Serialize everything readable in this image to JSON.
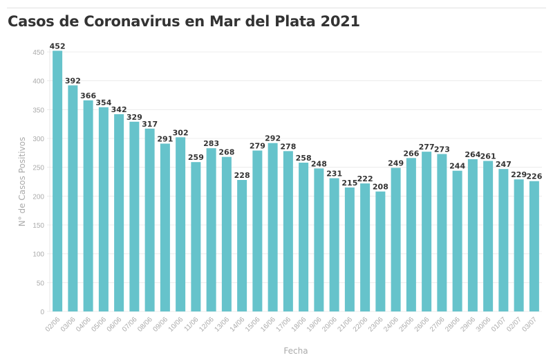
{
  "chart_data": {
    "type": "bar",
    "title": "Casos de Coronavirus en Mar del Plata 2021",
    "xlabel": "Fecha",
    "ylabel": "N° de Casos Positivos",
    "ylim": [
      0,
      450
    ],
    "yticks": [
      0,
      50,
      100,
      150,
      200,
      250,
      300,
      350,
      400,
      450
    ],
    "grid": true,
    "bar_color": "#66c3cb",
    "categories": [
      "02/06",
      "03/06",
      "04/06",
      "05/06",
      "06/06",
      "07/06",
      "08/06",
      "09/06",
      "10/06",
      "11/06",
      "12/06",
      "13/06",
      "14/06",
      "15/06",
      "16/06",
      "17/06",
      "18/06",
      "19/06",
      "20/06",
      "21/06",
      "22/06",
      "23/06",
      "24/06",
      "25/06",
      "26/06",
      "27/06",
      "28/06",
      "29/06",
      "30/06",
      "01/07",
      "02/07",
      "03/07"
    ],
    "values": [
      452,
      392,
      366,
      354,
      342,
      329,
      317,
      291,
      302,
      259,
      283,
      268,
      228,
      279,
      292,
      278,
      258,
      248,
      231,
      215,
      222,
      208,
      249,
      266,
      277,
      273,
      244,
      264,
      261,
      247,
      229,
      226
    ]
  }
}
